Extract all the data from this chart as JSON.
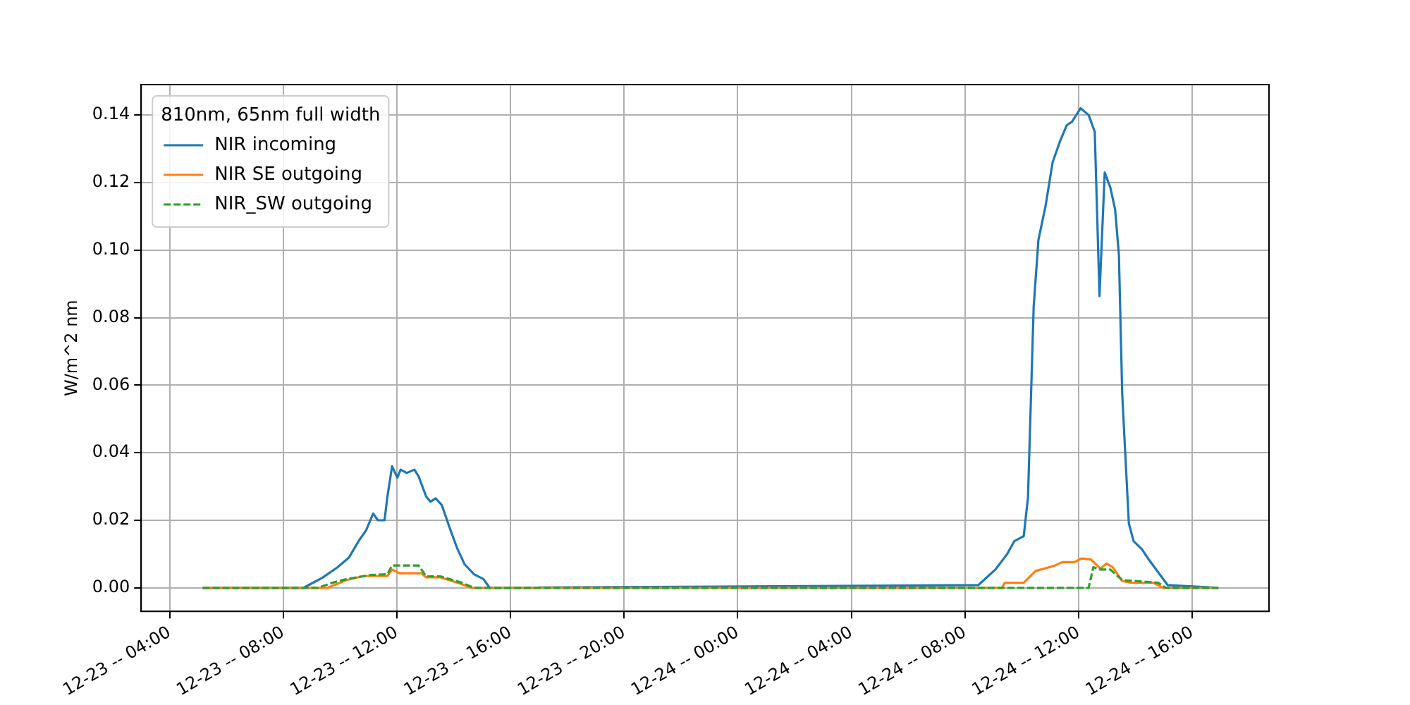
{
  "chart_data": {
    "type": "line",
    "ylabel": "W/m^2 nm",
    "legend_title": "810nm, 65nm full width",
    "xlim": [
      "--12-23T03:00",
      "--12-24T18:42"
    ],
    "xticks": [
      {
        "value": "--12-23T04:00",
        "label": "12-23 -- 04:00"
      },
      {
        "value": "--12-23T08:00",
        "label": "12-23 -- 08:00"
      },
      {
        "value": "--12-23T12:00",
        "label": "12-23 -- 12:00"
      },
      {
        "value": "--12-23T16:00",
        "label": "12-23 -- 16:00"
      },
      {
        "value": "--12-23T20:00",
        "label": "12-23 -- 20:00"
      },
      {
        "value": "--12-24T00:00",
        "label": "12-24 -- 00:00"
      },
      {
        "value": "--12-24T04:00",
        "label": "12-24 -- 04:00"
      },
      {
        "value": "--12-24T08:00",
        "label": "12-24 -- 08:00"
      },
      {
        "value": "--12-24T12:00",
        "label": "12-24 -- 12:00"
      },
      {
        "value": "--12-24T16:00",
        "label": "12-24 -- 16:00"
      }
    ],
    "ylim": [
      -0.007,
      0.149
    ],
    "yticks": [
      {
        "value": 0,
        "label": "0.00"
      },
      {
        "value": 0.02,
        "label": "0.02"
      },
      {
        "value": 0.04,
        "label": "0.04"
      },
      {
        "value": 0.06,
        "label": "0.06"
      },
      {
        "value": 0.08,
        "label": "0.08"
      },
      {
        "value": 0.1,
        "label": "0.10"
      },
      {
        "value": 0.12,
        "label": "0.12"
      },
      {
        "value": 0.14,
        "label": "0.14"
      }
    ],
    "grid": true,
    "legend": "top left",
    "marker": "none",
    "series": [
      {
        "name": "NIR incoming",
        "color": "#1f77b4",
        "line_style": "solid",
        "x": [
          "--12-23T05:10",
          "--12-23T08:43",
          "--12-23T09:23",
          "--12-23T09:54",
          "--12-23T10:19",
          "--12-23T10:40",
          "--12-23T10:55",
          "--12-23T11:10",
          "--12-23T11:20",
          "--12-23T11:34",
          "--12-23T11:40",
          "--12-23T11:50",
          "--12-23T12:01",
          "--12-23T12:08",
          "--12-23T12:21",
          "--12-23T12:37",
          "--12-23T12:46",
          "--12-23T13:02",
          "--12-23T13:11",
          "--12-23T13:22",
          "--12-23T13:35",
          "--12-23T13:52",
          "--12-23T14:08",
          "--12-23T14:23",
          "--12-23T14:43",
          "--12-23T15:03",
          "--12-23T15:16",
          "--12-24T08:28",
          "--12-24T09:04",
          "--12-24T09:29",
          "--12-24T09:44",
          "--12-24T10:04",
          "--12-24T10:13",
          "--12-24T10:25",
          "--12-24T10:35",
          "--12-24T10:50",
          "--12-24T11:05",
          "--12-24T11:20",
          "--12-24T11:35",
          "--12-24T11:46",
          "--12-24T12:04",
          "--12-24T12:21",
          "--12-24T12:34",
          "--12-24T12:44",
          "--12-24T12:55",
          "--12-24T13:07",
          "--12-24T13:17",
          "--12-24T13:25",
          "--12-24T13:32",
          "--12-24T13:46",
          "--12-24T13:56",
          "--12-24T14:13",
          "--12-24T14:28",
          "--12-24T14:48",
          "--12-24T15:08",
          "--12-24T16:55"
        ],
        "values": [
          0,
          0,
          0.003,
          0.006,
          0.009,
          0.014,
          0.017,
          0.022,
          0.02,
          0.02,
          0.027,
          0.036,
          0.0326,
          0.035,
          0.034,
          0.035,
          0.033,
          0.027,
          0.0255,
          0.0265,
          0.0245,
          0.0176,
          0.0115,
          0.007,
          0.004,
          0.0026,
          0,
          0.0008,
          0.0054,
          0.01,
          0.0138,
          0.0153,
          0.0268,
          0.0833,
          0.103,
          0.113,
          0.126,
          0.132,
          0.137,
          0.138,
          0.142,
          0.14,
          0.135,
          0.0864,
          0.123,
          0.1185,
          0.112,
          0.0986,
          0.0573,
          0.0191,
          0.0138,
          0.0115,
          0.0084,
          0.0046,
          0.0008,
          0
        ]
      },
      {
        "name": "NIR SE outgoing",
        "color": "#ff7f0e",
        "line_style": "solid",
        "x": [
          "--12-23T05:10",
          "--12-23T09:34",
          "--12-23T10:14",
          "--12-23T10:50",
          "--12-23T11:40",
          "--12-23T11:50",
          "--12-23T12:06",
          "--12-23T12:52",
          "--12-23T13:02",
          "--12-23T13:32",
          "--12-23T14:08",
          "--12-23T14:38",
          "--12-24T09:18",
          "--12-24T09:24",
          "--12-24T10:04",
          "--12-24T10:29",
          "--12-24T10:50",
          "--12-24T11:10",
          "--12-24T11:25",
          "--12-24T11:51",
          "--12-24T12:06",
          "--12-24T12:26",
          "--12-24T12:46",
          "--12-24T12:59",
          "--12-24T13:12",
          "--12-24T13:32",
          "--12-24T13:52",
          "--12-24T14:38",
          "--12-24T14:58",
          "--12-24T16:55"
        ],
        "values": [
          0,
          0,
          0.0023,
          0.0035,
          0.0035,
          0.0054,
          0.0043,
          0.0043,
          0.0031,
          0.0031,
          0.0015,
          0,
          0,
          0.0015,
          0.0015,
          0.005,
          0.0058,
          0.0066,
          0.0076,
          0.0076,
          0.0087,
          0.0084,
          0.0057,
          0.0072,
          0.0061,
          0.002,
          0.0015,
          0.0015,
          0,
          0
        ]
      },
      {
        "name": "NIR_SW outgoing",
        "color": "#2ca02c",
        "line_style": "dashed",
        "x": [
          "--12-23T05:10",
          "--12-23T09:13",
          "--12-23T09:44",
          "--12-23T10:14",
          "--12-23T11:05",
          "--12-23T11:40",
          "--12-23T11:50",
          "--12-23T12:46",
          "--12-23T13:02",
          "--12-23T13:32",
          "--12-23T14:17",
          "--12-23T14:43",
          "--12-24T12:21",
          "--12-24T12:31",
          "--12-24T12:46",
          "--12-24T13:07",
          "--12-24T13:32",
          "--12-24T14:48",
          "--12-24T15:04",
          "--12-24T16:55"
        ],
        "values": [
          0,
          0,
          0.0015,
          0.0026,
          0.0038,
          0.004,
          0.0066,
          0.0066,
          0.0034,
          0.0034,
          0.0015,
          0,
          0,
          0.0061,
          0.0054,
          0.0054,
          0.0023,
          0.0015,
          0,
          0
        ]
      }
    ]
  }
}
